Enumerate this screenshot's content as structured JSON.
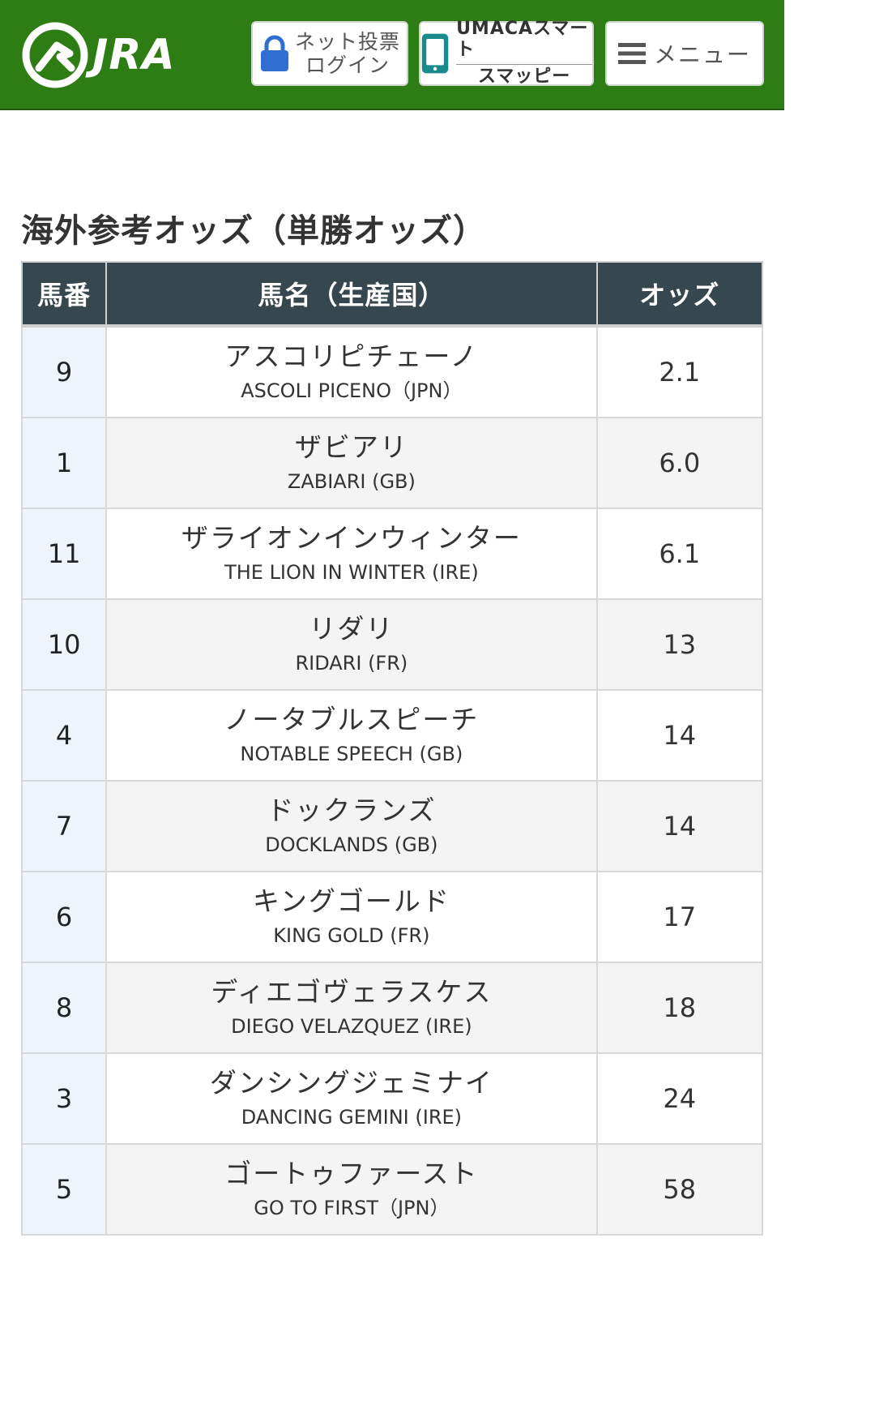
{
  "header": {
    "logo_text": "JRA",
    "login_line1": "ネット投票",
    "login_line2": "ログイン",
    "umaca_line1": "UMACAスマート",
    "umaca_line2": "スマッピー",
    "menu_label": "メニュー",
    "bg_color": "#2e7d14"
  },
  "page": {
    "title": "海外参考オッズ（単勝オッズ）"
  },
  "table": {
    "headers": {
      "num": "馬番",
      "name": "馬名（生産国）",
      "odds": "オッズ"
    },
    "rows": [
      {
        "num": "9",
        "name_ja": "アスコリピチェーノ",
        "name_en": "ASCOLI PICENO（JPN）",
        "odds": "2.1"
      },
      {
        "num": "1",
        "name_ja": "ザビアリ",
        "name_en": "ZABIARI (GB)",
        "odds": "6.0"
      },
      {
        "num": "11",
        "name_ja": "ザライオンインウィンター",
        "name_en": "THE LION IN WINTER (IRE)",
        "odds": "6.1"
      },
      {
        "num": "10",
        "name_ja": "リダリ",
        "name_en": "RIDARI (FR)",
        "odds": "13"
      },
      {
        "num": "4",
        "name_ja": "ノータブルスピーチ",
        "name_en": "NOTABLE SPEECH (GB)",
        "odds": "14"
      },
      {
        "num": "7",
        "name_ja": "ドックランズ",
        "name_en": "DOCKLANDS (GB)",
        "odds": "14"
      },
      {
        "num": "6",
        "name_ja": "キングゴールド",
        "name_en": "KING GOLD (FR)",
        "odds": "17"
      },
      {
        "num": "8",
        "name_ja": "ディエゴヴェラスケス",
        "name_en": "DIEGO VELAZQUEZ (IRE)",
        "odds": "18"
      },
      {
        "num": "3",
        "name_ja": "ダンシングジェミナイ",
        "name_en": "DANCING GEMINI (IRE)",
        "odds": "24"
      },
      {
        "num": "5",
        "name_ja": "ゴートゥファースト",
        "name_en": "GO TO FIRST（JPN）",
        "odds": "58"
      }
    ]
  }
}
